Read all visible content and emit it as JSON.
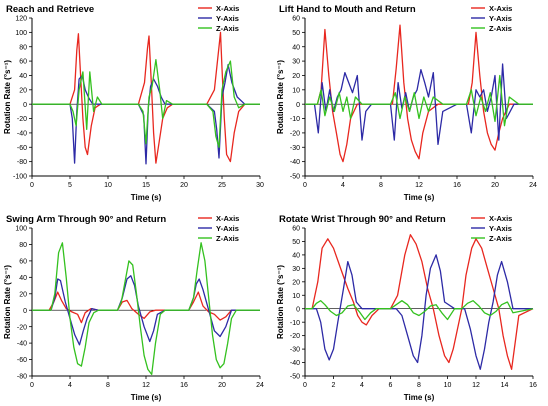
{
  "chart_data": [
    {
      "type": "line",
      "title": "Reach and Retrieve",
      "xlabel": "Time (s)",
      "ylabel": "Rotation Rate (°s⁻¹)",
      "xlim": [
        0,
        30
      ],
      "xticks": [
        0,
        5,
        10,
        15,
        20,
        25,
        30
      ],
      "ylim": [
        -100,
        120
      ],
      "yticks": [
        -100,
        -80,
        -60,
        -40,
        -20,
        0,
        20,
        40,
        60,
        80,
        100,
        120
      ],
      "legend": "top-right",
      "series": [
        {
          "name": "X-Axis",
          "color": "#e8271f",
          "x": [
            0,
            5,
            5.6,
            5.9,
            6.1,
            6.4,
            6.7,
            7.0,
            7.3,
            7.8,
            8.3,
            9,
            14,
            14.8,
            15.2,
            15.4,
            15.7,
            16.0,
            16.3,
            16.7,
            17.2,
            17.8,
            18.5,
            23,
            24,
            24.6,
            24.8,
            25.0,
            25.3,
            25.6,
            26.1,
            26.6,
            27.2,
            28,
            30
          ],
          "y": [
            0,
            0,
            20,
            75,
            98,
            40,
            -20,
            -60,
            -70,
            -30,
            -5,
            0,
            0,
            30,
            78,
            95,
            30,
            -40,
            -82,
            -55,
            -20,
            -5,
            0,
            0,
            20,
            80,
            100,
            50,
            -20,
            -70,
            -80,
            -40,
            -10,
            0,
            0
          ]
        },
        {
          "name": "Y-Axis",
          "color": "#2d2aa6",
          "x": [
            0,
            5,
            5.3,
            5.6,
            5.9,
            6.2,
            6.6,
            7.0,
            7.5,
            8.0,
            9,
            14,
            14.7,
            15.0,
            15.3,
            15.6,
            16.0,
            16.5,
            17.0,
            17.5,
            18.5,
            23,
            24,
            24.3,
            24.6,
            25.0,
            25.4,
            25.8,
            26.3,
            27.0,
            28,
            30
          ],
          "y": [
            0,
            0,
            -20,
            -82,
            -10,
            35,
            40,
            20,
            8,
            0,
            0,
            0,
            -15,
            -83,
            -5,
            25,
            35,
            25,
            10,
            0,
            0,
            0,
            -10,
            -35,
            -75,
            10,
            30,
            55,
            30,
            10,
            0,
            0
          ]
        },
        {
          "name": "Z-Axis",
          "color": "#34c11f",
          "x": [
            0,
            5,
            5.4,
            5.8,
            6.2,
            6.7,
            7.2,
            7.6,
            8.1,
            8.6,
            9.2,
            14,
            14.6,
            15.0,
            15.4,
            15.8,
            16.3,
            16.8,
            17.2,
            17.7,
            18.5,
            23,
            23.8,
            24.2,
            24.6,
            25.0,
            25.5,
            26.1,
            26.6,
            27.2,
            28,
            30
          ],
          "y": [
            0,
            0,
            -10,
            -30,
            20,
            45,
            -35,
            45,
            -10,
            10,
            0,
            0,
            -10,
            -55,
            10,
            25,
            62,
            20,
            -20,
            5,
            0,
            0,
            -10,
            -45,
            -60,
            20,
            45,
            60,
            10,
            -5,
            0,
            0
          ]
        }
      ]
    },
    {
      "type": "line",
      "title": "Lift Hand to Mouth and Return",
      "xlabel": "Time (s)",
      "ylabel": "Rotation Rate (°s⁻¹)",
      "xlim": [
        0,
        24
      ],
      "xticks": [
        0,
        4,
        8,
        12,
        16,
        20,
        24
      ],
      "ylim": [
        -50,
        60
      ],
      "yticks": [
        -50,
        -40,
        -30,
        -20,
        -10,
        0,
        10,
        20,
        30,
        40,
        50,
        60
      ],
      "legend": "top-right",
      "series": [
        {
          "name": "X-Axis",
          "color": "#e8271f",
          "x": [
            0,
            1.3,
            1.7,
            2.1,
            2.5,
            2.9,
            3.3,
            3.7,
            4.0,
            4.4,
            4.8,
            5.5,
            6.5,
            8,
            9.2,
            9.6,
            10.0,
            10.4,
            10.8,
            11.2,
            11.6,
            12.0,
            12.4,
            13,
            14,
            16,
            17.2,
            17.6,
            18.0,
            18.4,
            18.8,
            19.2,
            19.6,
            20.0,
            20.4,
            20.8,
            21.5,
            24
          ],
          "y": [
            0,
            0,
            10,
            52,
            20,
            -5,
            -20,
            -35,
            -40,
            -28,
            -10,
            0,
            0,
            0,
            0,
            25,
            55,
            15,
            -10,
            -25,
            -33,
            -38,
            -20,
            -5,
            0,
            0,
            0,
            15,
            50,
            20,
            -5,
            -20,
            -28,
            -32,
            -20,
            -10,
            0,
            0
          ]
        },
        {
          "name": "Y-Axis",
          "color": "#2d2aa6",
          "x": [
            0,
            1.0,
            1.4,
            1.8,
            2.2,
            2.6,
            3.0,
            3.4,
            3.8,
            4.2,
            4.6,
            5.0,
            5.5,
            6.0,
            6.4,
            7,
            9.0,
            9.4,
            9.8,
            10.2,
            10.6,
            11.0,
            11.4,
            11.8,
            12.2,
            12.6,
            13.0,
            13.5,
            14.0,
            14.5,
            16,
            17.0,
            17.5,
            18.0,
            18.4,
            18.8,
            19.2,
            19.6,
            20.0,
            20.4,
            20.8,
            21.2,
            22,
            24
          ],
          "y": [
            0,
            0,
            -20,
            15,
            -5,
            10,
            -5,
            5,
            10,
            22,
            15,
            8,
            20,
            -25,
            -5,
            0,
            0,
            -25,
            15,
            -3,
            8,
            -5,
            5,
            10,
            24,
            15,
            5,
            22,
            -28,
            -5,
            0,
            0,
            -20,
            10,
            5,
            10,
            -5,
            5,
            20,
            -25,
            28,
            -10,
            0,
            0
          ]
        },
        {
          "name": "Z-Axis",
          "color": "#34c11f",
          "x": [
            0,
            1.3,
            1.7,
            2.1,
            2.6,
            3.1,
            3.6,
            4.0,
            4.4,
            4.8,
            5.3,
            6,
            9.0,
            9.5,
            10.0,
            10.5,
            11.0,
            11.5,
            12.0,
            12.5,
            13.0,
            13.5,
            14.5,
            17.0,
            17.5,
            18.0,
            18.5,
            19.0,
            19.5,
            20.0,
            20.5,
            21.0,
            21.5,
            22.5,
            24
          ],
          "y": [
            0,
            0,
            10,
            -8,
            5,
            -5,
            8,
            -5,
            5,
            -10,
            5,
            0,
            0,
            8,
            -10,
            5,
            -5,
            8,
            -10,
            5,
            -5,
            5,
            0,
            0,
            10,
            -8,
            5,
            -5,
            8,
            -12,
            20,
            -15,
            5,
            0,
            0
          ]
        }
      ]
    },
    {
      "type": "line",
      "title": "Swing Arm Through 90° and Return",
      "xlabel": "Time (s)",
      "ylabel": "Rotation Rate (°s⁻¹)",
      "xlim": [
        0,
        24
      ],
      "xticks": [
        0,
        4,
        8,
        12,
        16,
        20,
        24
      ],
      "ylim": [
        -80,
        100
      ],
      "yticks": [
        -80,
        -60,
        -40,
        -20,
        0,
        20,
        40,
        60,
        80,
        100
      ],
      "legend": "top-right",
      "series": [
        {
          "name": "X-Axis",
          "color": "#e8271f",
          "x": [
            0,
            1.8,
            2.3,
            2.7,
            3.1,
            3.6,
            4.2,
            4.8,
            5.2,
            5.6,
            6.2,
            7,
            9.0,
            9.5,
            10.0,
            10.5,
            11.2,
            11.8,
            12.4,
            13.0,
            16.5,
            17.0,
            17.5,
            18.0,
            18.6,
            19.2,
            19.8,
            20.4,
            21.0,
            24
          ],
          "y": [
            0,
            0,
            10,
            22,
            12,
            2,
            -2,
            -5,
            -15,
            -3,
            2,
            0,
            0,
            10,
            12,
            2,
            -5,
            -10,
            -2,
            0,
            0,
            10,
            22,
            5,
            -2,
            -5,
            -12,
            -8,
            0,
            0
          ]
        },
        {
          "name": "Y-Axis",
          "color": "#2d2aa6",
          "x": [
            0,
            2.0,
            2.4,
            2.7,
            3.0,
            3.5,
            4.0,
            4.5,
            5.0,
            5.4,
            5.8,
            6.3,
            7,
            9.0,
            9.5,
            10.0,
            10.4,
            10.8,
            11.2,
            11.8,
            12.4,
            12.8,
            13.2,
            14,
            16.5,
            17.0,
            17.3,
            17.6,
            18.0,
            18.6,
            19.2,
            19.8,
            20.4,
            21.0,
            24
          ],
          "y": [
            0,
            0,
            15,
            38,
            36,
            10,
            -10,
            -30,
            -42,
            -25,
            -10,
            2,
            0,
            0,
            15,
            38,
            42,
            30,
            5,
            -20,
            -38,
            -25,
            -5,
            0,
            0,
            15,
            32,
            38,
            25,
            0,
            -25,
            -32,
            -20,
            0,
            0
          ]
        },
        {
          "name": "Z-Axis",
          "color": "#34c11f",
          "x": [
            0,
            2.0,
            2.4,
            2.8,
            3.2,
            3.6,
            4.0,
            4.4,
            4.8,
            5.2,
            5.6,
            6.0,
            6.5,
            7,
            9.0,
            9.4,
            9.8,
            10.2,
            10.6,
            11.0,
            11.4,
            11.8,
            12.2,
            12.6,
            13.0,
            13.5,
            14,
            16.5,
            17.0,
            17.4,
            17.8,
            18.2,
            18.6,
            19.0,
            19.4,
            19.8,
            20.2,
            20.6,
            21.0,
            21.5,
            24
          ],
          "y": [
            0,
            0,
            20,
            70,
            82,
            40,
            -10,
            -45,
            -65,
            -68,
            -45,
            -15,
            -3,
            0,
            0,
            10,
            35,
            60,
            55,
            20,
            -20,
            -55,
            -72,
            -78,
            -40,
            -5,
            0,
            0,
            15,
            50,
            82,
            60,
            15,
            -30,
            -60,
            -70,
            -65,
            -40,
            -10,
            0,
            0
          ]
        }
      ]
    },
    {
      "type": "line",
      "title": "Rotate Wrist Through 90° and Return",
      "xlabel": "Time (s)",
      "ylabel": "Rotation Rate (°s⁻¹)",
      "xlim": [
        0,
        16
      ],
      "xticks": [
        0,
        2,
        4,
        6,
        8,
        10,
        12,
        14,
        16
      ],
      "ylim": [
        -50,
        60
      ],
      "yticks": [
        -50,
        -40,
        -30,
        -20,
        -10,
        0,
        10,
        20,
        30,
        40,
        50,
        60
      ],
      "legend": "top-right",
      "series": [
        {
          "name": "X-Axis",
          "color": "#e8271f",
          "x": [
            0,
            0.5,
            0.9,
            1.2,
            1.6,
            2.0,
            2.5,
            3.0,
            3.4,
            3.7,
            4.0,
            4.3,
            4.7,
            5.2,
            6.0,
            6.5,
            7.0,
            7.4,
            7.8,
            8.2,
            8.6,
            9.0,
            9.4,
            9.8,
            10.1,
            10.4,
            11.0,
            11.3,
            11.7,
            12.0,
            12.4,
            12.8,
            13.2,
            13.6,
            13.9,
            14.2,
            14.5,
            15.0,
            16
          ],
          "y": [
            0,
            0,
            20,
            45,
            52,
            45,
            30,
            15,
            5,
            -5,
            -10,
            -12,
            -5,
            0,
            0,
            10,
            40,
            55,
            48,
            35,
            15,
            0,
            -20,
            -35,
            -40,
            -30,
            0,
            25,
            45,
            52,
            45,
            30,
            15,
            0,
            -20,
            -35,
            -45,
            -5,
            0
          ]
        },
        {
          "name": "Y-Axis",
          "color": "#2d2aa6",
          "x": [
            0,
            0.8,
            1.1,
            1.4,
            1.7,
            2.0,
            2.3,
            2.7,
            3.0,
            3.3,
            3.6,
            4.0,
            6.4,
            6.8,
            7.2,
            7.6,
            7.9,
            8.2,
            8.5,
            8.8,
            9.2,
            9.5,
            9.8,
            10.5,
            11.2,
            11.6,
            12.0,
            12.3,
            12.6,
            12.9,
            13.2,
            13.5,
            13.8,
            14.2,
            14.6,
            16
          ],
          "y": [
            0,
            0,
            -10,
            -30,
            -38,
            -30,
            -10,
            15,
            35,
            25,
            5,
            0,
            0,
            -5,
            -20,
            -35,
            -40,
            -20,
            10,
            30,
            40,
            28,
            5,
            0,
            0,
            -15,
            -35,
            -45,
            -30,
            -10,
            5,
            25,
            35,
            20,
            0,
            0
          ]
        },
        {
          "name": "Z-Axis",
          "color": "#34c11f",
          "x": [
            0,
            0.5,
            0.8,
            1.1,
            1.4,
            1.8,
            2.2,
            2.6,
            3.0,
            3.4,
            3.8,
            4.2,
            4.6,
            5.0,
            6.0,
            6.4,
            6.8,
            7.2,
            7.6,
            8.0,
            8.4,
            8.8,
            9.2,
            9.6,
            10.0,
            10.5,
            11.0,
            11.4,
            11.8,
            12.2,
            12.6,
            13.0,
            13.4,
            13.8,
            14.2,
            14.6,
            16
          ],
          "y": [
            0,
            0,
            4,
            6,
            3,
            -2,
            -5,
            -3,
            2,
            3,
            -2,
            -8,
            -3,
            0,
            0,
            3,
            6,
            3,
            -3,
            -5,
            -2,
            2,
            3,
            -3,
            -8,
            0,
            0,
            4,
            6,
            2,
            -3,
            -5,
            -2,
            3,
            5,
            -3,
            0
          ]
        }
      ]
    }
  ]
}
